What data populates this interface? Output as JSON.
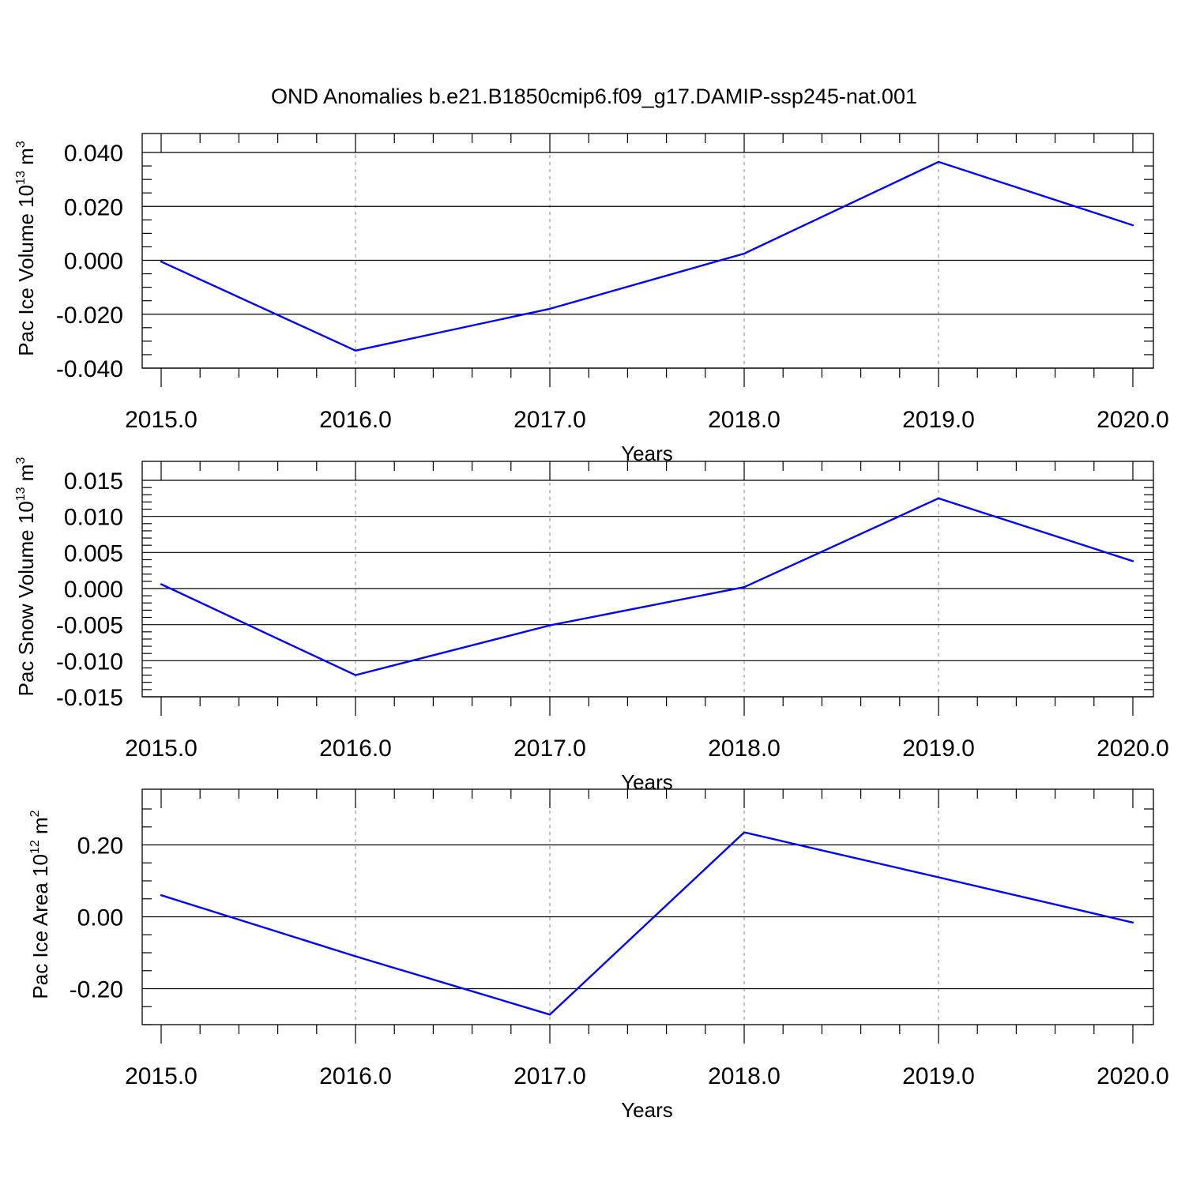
{
  "title": "OND Anomalies b.e21.B1850cmip6.f09_g17.DAMIP-ssp245-nat.001",
  "line_color": "#0000ff",
  "chart_data": [
    {
      "type": "line",
      "ylabel": "Pac Ice Volume",
      "ylabel_unit_base": "10",
      "ylabel_unit_exp": "13",
      "ylabel_unit_tail": "m",
      "ylabel_unit_tail_exp": "3",
      "xlabel": "Years",
      "x": [
        2015,
        2016,
        2017,
        2018,
        2019,
        2020
      ],
      "values": [
        -0.0005,
        -0.0335,
        -0.018,
        0.0025,
        0.0365,
        0.013
      ],
      "xlim": [
        2015,
        2020
      ],
      "ylim": [
        -0.04,
        0.04
      ],
      "x_ticks": [
        "2015.0",
        "2016.0",
        "2017.0",
        "2018.0",
        "2019.0",
        "2020.0"
      ],
      "y_ticks": [
        {
          "value": 0.04,
          "label": "0.040"
        },
        {
          "value": 0.02,
          "label": "0.020"
        },
        {
          "value": 0.0,
          "label": "0.000"
        },
        {
          "value": -0.02,
          "label": "-0.020"
        },
        {
          "value": -0.04,
          "label": "-0.040"
        }
      ],
      "y_minor_step": 0.005,
      "grid": "x-dashed"
    },
    {
      "type": "line",
      "ylabel": "Pac Snow Volume",
      "ylabel_unit_base": "10",
      "ylabel_unit_exp": "13",
      "ylabel_unit_tail": "m",
      "ylabel_unit_tail_exp": "3",
      "xlabel": "Years",
      "x": [
        2015,
        2016,
        2017,
        2018,
        2019,
        2020
      ],
      "values": [
        0.0006,
        -0.012,
        -0.0051,
        0.0002,
        0.0125,
        0.0038
      ],
      "xlim": [
        2015,
        2020
      ],
      "ylim": [
        -0.015,
        0.015
      ],
      "x_ticks": [
        "2015.0",
        "2016.0",
        "2017.0",
        "2018.0",
        "2019.0",
        "2020.0"
      ],
      "y_ticks": [
        {
          "value": 0.015,
          "label": "0.015"
        },
        {
          "value": 0.01,
          "label": "0.010"
        },
        {
          "value": 0.005,
          "label": "0.005"
        },
        {
          "value": 0.0,
          "label": "0.000"
        },
        {
          "value": -0.005,
          "label": "-0.005"
        },
        {
          "value": -0.01,
          "label": "-0.010"
        },
        {
          "value": -0.015,
          "label": "-0.015"
        }
      ],
      "y_minor_step": 0.001,
      "grid": "x-dashed"
    },
    {
      "type": "line",
      "ylabel": "Pac Ice Area",
      "ylabel_unit_base": "10",
      "ylabel_unit_exp": "12",
      "ylabel_unit_tail": "m",
      "ylabel_unit_tail_exp": "2",
      "xlabel": "Years",
      "x": [
        2015,
        2016,
        2017,
        2018,
        2019,
        2020
      ],
      "values": [
        0.06,
        -0.11,
        -0.272,
        0.235,
        0.11,
        -0.016
      ],
      "xlim": [
        2015,
        2020
      ],
      "ylim": [
        -0.3,
        0.3
      ],
      "x_ticks": [
        "2015.0",
        "2016.0",
        "2017.0",
        "2018.0",
        "2019.0",
        "2020.0"
      ],
      "y_ticks": [
        {
          "value": 0.2,
          "label": "0.20"
        },
        {
          "value": 0.0,
          "label": "0.00"
        },
        {
          "value": -0.2,
          "label": "-0.20"
        }
      ],
      "y_minor_step": 0.05,
      "grid": "x-dashed"
    }
  ]
}
